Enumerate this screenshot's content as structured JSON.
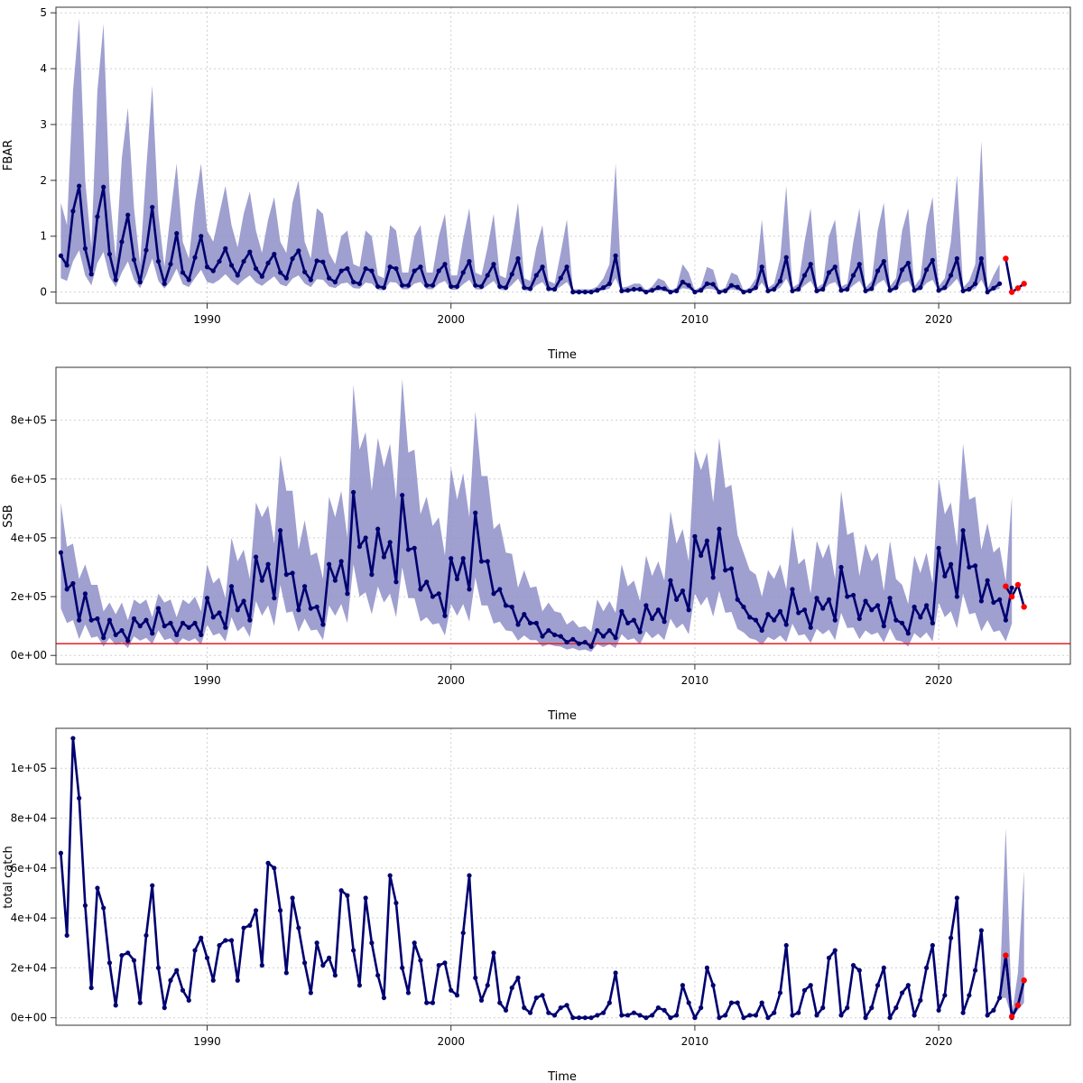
{
  "chart_data": [
    {
      "type": "line",
      "name": "fbar",
      "xlabel": "Time",
      "ylabel": "FBAR",
      "xlim": [
        1983.8,
        2025.4
      ],
      "ylim": [
        -0.2,
        5.1
      ],
      "xticks": [
        1990,
        2000,
        2010,
        2020
      ],
      "yticks": [
        0,
        1,
        2,
        3,
        4,
        5
      ],
      "ytick_labels": [
        "0",
        "1",
        "2",
        "3",
        "4",
        "5"
      ],
      "x_start": 1984.0,
      "x_step": 0.25,
      "values": [
        0.65,
        0.48,
        1.45,
        1.9,
        0.78,
        0.32,
        1.35,
        1.88,
        0.68,
        0.22,
        0.9,
        1.38,
        0.58,
        0.18,
        0.75,
        1.52,
        0.55,
        0.15,
        0.5,
        1.05,
        0.35,
        0.22,
        0.62,
        1.0,
        0.45,
        0.38,
        0.55,
        0.78,
        0.48,
        0.3,
        0.55,
        0.72,
        0.42,
        0.28,
        0.52,
        0.68,
        0.35,
        0.25,
        0.6,
        0.74,
        0.36,
        0.22,
        0.56,
        0.54,
        0.25,
        0.18,
        0.38,
        0.42,
        0.18,
        0.15,
        0.42,
        0.38,
        0.1,
        0.08,
        0.45,
        0.42,
        0.12,
        0.12,
        0.38,
        0.45,
        0.12,
        0.12,
        0.38,
        0.5,
        0.1,
        0.1,
        0.35,
        0.55,
        0.12,
        0.1,
        0.3,
        0.5,
        0.1,
        0.08,
        0.32,
        0.6,
        0.08,
        0.06,
        0.3,
        0.45,
        0.06,
        0.05,
        0.25,
        0.45,
        0.0,
        0.0,
        0.0,
        0.0,
        0.03,
        0.08,
        0.15,
        0.65,
        0.02,
        0.03,
        0.05,
        0.05,
        0.0,
        0.03,
        0.08,
        0.06,
        0.0,
        0.02,
        0.18,
        0.12,
        0.0,
        0.03,
        0.15,
        0.14,
        0.0,
        0.02,
        0.12,
        0.09,
        0.0,
        0.02,
        0.08,
        0.45,
        0.02,
        0.05,
        0.2,
        0.62,
        0.02,
        0.05,
        0.3,
        0.5,
        0.02,
        0.05,
        0.35,
        0.45,
        0.03,
        0.05,
        0.3,
        0.5,
        0.02,
        0.06,
        0.38,
        0.55,
        0.03,
        0.08,
        0.4,
        0.52,
        0.03,
        0.08,
        0.4,
        0.57,
        0.03,
        0.08,
        0.3,
        0.6,
        0.02,
        0.05,
        0.15,
        0.6,
        0.0,
        0.07,
        0.15
      ],
      "upper": [
        1.6,
        1.2,
        3.6,
        4.9,
        2.0,
        0.8,
        3.6,
        4.8,
        1.8,
        0.6,
        2.4,
        3.3,
        1.5,
        0.5,
        2.2,
        3.7,
        1.4,
        0.45,
        1.4,
        2.3,
        0.9,
        0.6,
        1.6,
        2.3,
        1.1,
        0.9,
        1.4,
        1.9,
        1.2,
        0.8,
        1.4,
        1.8,
        1.1,
        0.7,
        1.3,
        1.7,
        0.9,
        0.7,
        1.6,
        2.0,
        0.9,
        0.6,
        1.5,
        1.4,
        0.7,
        0.5,
        1.0,
        1.1,
        0.5,
        0.45,
        1.1,
        1.0,
        0.3,
        0.25,
        1.2,
        1.1,
        0.35,
        0.35,
        1.0,
        1.2,
        0.35,
        0.35,
        1.0,
        1.4,
        0.3,
        0.3,
        0.95,
        1.5,
        0.35,
        0.3,
        0.8,
        1.4,
        0.3,
        0.25,
        0.9,
        1.6,
        0.25,
        0.2,
        0.8,
        1.2,
        0.2,
        0.15,
        0.7,
        1.3,
        0.05,
        0.05,
        0.05,
        0.05,
        0.1,
        0.25,
        0.5,
        2.3,
        0.08,
        0.1,
        0.15,
        0.15,
        0.03,
        0.1,
        0.25,
        0.2,
        0.03,
        0.08,
        0.5,
        0.35,
        0.03,
        0.1,
        0.45,
        0.4,
        0.03,
        0.08,
        0.35,
        0.3,
        0.03,
        0.08,
        0.25,
        1.3,
        0.08,
        0.15,
        0.6,
        1.9,
        0.08,
        0.15,
        0.9,
        1.5,
        0.08,
        0.15,
        1.0,
        1.3,
        0.1,
        0.15,
        0.9,
        1.5,
        0.08,
        0.2,
        1.1,
        1.6,
        0.1,
        0.25,
        1.1,
        1.5,
        0.1,
        0.25,
        1.2,
        1.7,
        0.1,
        0.25,
        0.9,
        2.1,
        0.08,
        0.2,
        0.5,
        2.7,
        0.05,
        0.3,
        0.5
      ],
      "lower": [
        0.25,
        0.2,
        0.55,
        0.75,
        0.3,
        0.12,
        0.52,
        0.72,
        0.27,
        0.09,
        0.35,
        0.55,
        0.22,
        0.07,
        0.3,
        0.6,
        0.2,
        0.06,
        0.2,
        0.42,
        0.14,
        0.09,
        0.25,
        0.4,
        0.18,
        0.15,
        0.22,
        0.32,
        0.2,
        0.12,
        0.22,
        0.3,
        0.17,
        0.11,
        0.2,
        0.28,
        0.14,
        0.1,
        0.24,
        0.3,
        0.15,
        0.09,
        0.23,
        0.22,
        0.1,
        0.07,
        0.15,
        0.17,
        0.07,
        0.06,
        0.17,
        0.15,
        0.04,
        0.03,
        0.18,
        0.17,
        0.05,
        0.05,
        0.15,
        0.18,
        0.05,
        0.05,
        0.15,
        0.2,
        0.04,
        0.04,
        0.14,
        0.22,
        0.05,
        0.04,
        0.12,
        0.2,
        0.04,
        0.03,
        0.13,
        0.24,
        0.03,
        0.02,
        0.12,
        0.18,
        0.02,
        0.02,
        0.1,
        0.18,
        0.0,
        0.0,
        0.0,
        0.0,
        0.01,
        0.03,
        0.06,
        0.25,
        0.0,
        0.01,
        0.02,
        0.02,
        0.0,
        0.01,
        0.03,
        0.02,
        0.0,
        0.0,
        0.07,
        0.05,
        0.0,
        0.01,
        0.06,
        0.05,
        0.0,
        0.0,
        0.05,
        0.03,
        0.0,
        0.0,
        0.03,
        0.17,
        0.0,
        0.02,
        0.08,
        0.24,
        0.0,
        0.02,
        0.12,
        0.2,
        0.0,
        0.02,
        0.14,
        0.18,
        0.01,
        0.02,
        0.12,
        0.2,
        0.0,
        0.02,
        0.15,
        0.22,
        0.01,
        0.03,
        0.16,
        0.2,
        0.01,
        0.03,
        0.16,
        0.22,
        0.01,
        0.03,
        0.12,
        0.24,
        0.0,
        0.02,
        0.06,
        0.22,
        0.0,
        0.03,
        0.06
      ],
      "projection": {
        "x": [
          2022.75,
          2023.0,
          2023.25,
          2023.5
        ],
        "values": [
          0.6,
          0.0,
          0.07,
          0.15
        ]
      }
    },
    {
      "type": "line",
      "name": "ssb",
      "xlabel": "Time",
      "ylabel": "SSB",
      "xlim": [
        1983.8,
        2025.4
      ],
      "ylim": [
        -30000,
        980000
      ],
      "xticks": [
        1990,
        2000,
        2010,
        2020
      ],
      "yticks": [
        0,
        200000,
        400000,
        600000,
        800000
      ],
      "ytick_labels": [
        "0e+00",
        "2e+05",
        "4e+05",
        "6e+05",
        "8e+05"
      ],
      "x_start": 1984.0,
      "x_step": 0.25,
      "values": [
        350000,
        225000,
        245000,
        120000,
        210000,
        120000,
        125000,
        60000,
        120000,
        70000,
        85000,
        50000,
        125000,
        100000,
        120000,
        75000,
        160000,
        100000,
        110000,
        70000,
        110000,
        95000,
        110000,
        70000,
        195000,
        130000,
        145000,
        95000,
        235000,
        155000,
        185000,
        120000,
        335000,
        255000,
        310000,
        195000,
        425000,
        275000,
        280000,
        155000,
        235000,
        160000,
        165000,
        105000,
        310000,
        255000,
        320000,
        210000,
        555000,
        370000,
        400000,
        275000,
        430000,
        335000,
        385000,
        250000,
        545000,
        360000,
        365000,
        225000,
        250000,
        200000,
        210000,
        135000,
        330000,
        260000,
        330000,
        225000,
        485000,
        320000,
        320000,
        210000,
        225000,
        170000,
        165000,
        105000,
        140000,
        110000,
        110000,
        65000,
        85000,
        70000,
        65000,
        45000,
        55000,
        40000,
        45000,
        30000,
        85000,
        65000,
        85000,
        60000,
        150000,
        110000,
        120000,
        80000,
        170000,
        125000,
        155000,
        115000,
        255000,
        190000,
        220000,
        155000,
        405000,
        340000,
        390000,
        265000,
        430000,
        290000,
        295000,
        190000,
        165000,
        130000,
        120000,
        85000,
        140000,
        120000,
        150000,
        105000,
        225000,
        145000,
        155000,
        95000,
        195000,
        160000,
        190000,
        120000,
        300000,
        200000,
        205000,
        125000,
        185000,
        155000,
        170000,
        100000,
        195000,
        120000,
        110000,
        75000,
        165000,
        130000,
        170000,
        110000,
        365000,
        270000,
        310000,
        200000,
        425000,
        300000,
        305000,
        185000,
        255000,
        180000,
        190000,
        120000,
        230000
      ],
      "upper": [
        520000,
        370000,
        380000,
        260000,
        310000,
        240000,
        240000,
        150000,
        180000,
        140000,
        180000,
        120000,
        190000,
        175000,
        190000,
        130000,
        210000,
        180000,
        190000,
        130000,
        190000,
        175000,
        200000,
        150000,
        310000,
        245000,
        265000,
        195000,
        400000,
        320000,
        360000,
        260000,
        520000,
        470000,
        510000,
        380000,
        680000,
        560000,
        560000,
        360000,
        460000,
        340000,
        350000,
        260000,
        540000,
        470000,
        560000,
        400000,
        920000,
        700000,
        760000,
        560000,
        740000,
        640000,
        720000,
        530000,
        940000,
        690000,
        700000,
        480000,
        540000,
        440000,
        470000,
        340000,
        640000,
        530000,
        620000,
        470000,
        830000,
        610000,
        610000,
        430000,
        450000,
        350000,
        345000,
        230000,
        290000,
        230000,
        235000,
        150000,
        180000,
        150000,
        145000,
        105000,
        120000,
        95000,
        100000,
        80000,
        190000,
        150000,
        185000,
        145000,
        310000,
        235000,
        255000,
        185000,
        340000,
        270000,
        320000,
        255000,
        490000,
        380000,
        430000,
        320000,
        700000,
        630000,
        690000,
        520000,
        740000,
        570000,
        580000,
        410000,
        350000,
        290000,
        275000,
        200000,
        290000,
        260000,
        310000,
        225000,
        440000,
        310000,
        330000,
        210000,
        390000,
        330000,
        380000,
        260000,
        560000,
        410000,
        420000,
        270000,
        380000,
        320000,
        350000,
        220000,
        390000,
        260000,
        240000,
        175000,
        340000,
        280000,
        350000,
        245000,
        600000,
        480000,
        520000,
        370000,
        720000,
        530000,
        540000,
        360000,
        450000,
        350000,
        370000,
        250000,
        540000
      ],
      "lower": [
        160000,
        110000,
        120000,
        55000,
        105000,
        60000,
        65000,
        30000,
        60000,
        35000,
        45000,
        25000,
        65000,
        50000,
        60000,
        38000,
        85000,
        52000,
        58000,
        35000,
        58000,
        48000,
        58000,
        36000,
        105000,
        68000,
        76000,
        48000,
        130000,
        82000,
        100000,
        62000,
        185000,
        135000,
        170000,
        100000,
        240000,
        145000,
        150000,
        80000,
        125000,
        85000,
        88000,
        52000,
        170000,
        135000,
        175000,
        110000,
        310000,
        200000,
        215000,
        140000,
        235000,
        180000,
        210000,
        130000,
        300000,
        195000,
        195000,
        115000,
        130000,
        105000,
        110000,
        68000,
        175000,
        135000,
        175000,
        115000,
        265000,
        170000,
        170000,
        108000,
        115000,
        85000,
        82000,
        50000,
        68000,
        52000,
        52000,
        30000,
        38000,
        32000,
        30000,
        20000,
        25000,
        17000,
        20000,
        12000,
        38000,
        28000,
        38000,
        25000,
        72000,
        52000,
        58000,
        37000,
        82000,
        58000,
        74000,
        52000,
        125000,
        92000,
        108000,
        72000,
        210000,
        170000,
        200000,
        132000,
        220000,
        145000,
        148000,
        90000,
        78000,
        58000,
        53000,
        35000,
        63000,
        52000,
        68000,
        45000,
        108000,
        68000,
        72000,
        42000,
        90000,
        72000,
        88000,
        52000,
        145000,
        93000,
        95000,
        55000,
        85000,
        70000,
        78000,
        44000,
        92000,
        52000,
        47000,
        30000,
        76000,
        58000,
        78000,
        48000,
        180000,
        130000,
        150000,
        92000,
        210000,
        140000,
        145000,
        82000,
        120000,
        80000,
        85000,
        48000,
        108000
      ],
      "refline": 40000,
      "projection": {
        "x": [
          2022.75,
          2023.0,
          2023.25,
          2023.5
        ],
        "values": [
          235000,
          200000,
          240000,
          165000
        ]
      }
    },
    {
      "type": "line",
      "name": "catch",
      "xlabel": "Time",
      "ylabel": "total catch",
      "xlim": [
        1983.8,
        2025.4
      ],
      "ylim": [
        -3000,
        116000
      ],
      "xticks": [
        1990,
        2000,
        2010,
        2020
      ],
      "yticks": [
        0,
        20000,
        40000,
        60000,
        80000,
        100000
      ],
      "ytick_labels": [
        "0e+00",
        "2e+04",
        "4e+04",
        "6e+04",
        "8e+04",
        "1e+05"
      ],
      "x_start": 1984.0,
      "x_step": 0.25,
      "values": [
        66000,
        33000,
        112000,
        88000,
        45000,
        12000,
        52000,
        44000,
        22000,
        5000,
        25000,
        26000,
        23000,
        6000,
        33000,
        53000,
        20000,
        4000,
        15000,
        19000,
        11000,
        7000,
        27000,
        32000,
        24000,
        15000,
        29000,
        31000,
        31000,
        15000,
        36000,
        37000,
        43000,
        21000,
        62000,
        60000,
        43000,
        18000,
        48000,
        36000,
        22000,
        10000,
        30000,
        21000,
        24000,
        17000,
        51000,
        49000,
        27000,
        13000,
        48000,
        30000,
        17000,
        8000,
        57000,
        46000,
        20000,
        10000,
        30000,
        23000,
        6000,
        6000,
        21000,
        22000,
        11000,
        9000,
        34000,
        57000,
        16000,
        7000,
        13000,
        26000,
        6000,
        3000,
        12000,
        16000,
        4000,
        2000,
        8000,
        9000,
        2000,
        1000,
        4000,
        5000,
        0,
        0,
        0,
        0,
        1000,
        2000,
        6000,
        18000,
        1000,
        1000,
        2000,
        1000,
        0,
        1000,
        4000,
        3000,
        0,
        1000,
        13000,
        6000,
        0,
        4000,
        20000,
        13000,
        0,
        1000,
        6000,
        6000,
        0,
        1000,
        1000,
        6000,
        0,
        2000,
        10000,
        29000,
        1000,
        2000,
        11000,
        13000,
        1000,
        4000,
        24000,
        27000,
        1000,
        4000,
        21000,
        19000,
        0,
        4000,
        13000,
        20000,
        0,
        4000,
        10000,
        13000,
        1000,
        7000,
        20000,
        29000,
        3000,
        9000,
        32000,
        48000,
        2000,
        9000,
        19000,
        35000,
        1000,
        3000,
        8000,
        25000,
        0,
        5000,
        15000
      ],
      "projection": {
        "x": [
          2022.75,
          2023.0,
          2023.25,
          2023.5
        ],
        "values": [
          25000,
          500,
          5000,
          15000
        ]
      },
      "band": {
        "x": [
          2022.5,
          2022.75,
          2023.0,
          2023.25,
          2023.5
        ],
        "upper": [
          10000,
          76000,
          1000,
          18000,
          59000
        ],
        "lower": [
          8000,
          8000,
          0,
          3000,
          6000
        ]
      }
    }
  ]
}
